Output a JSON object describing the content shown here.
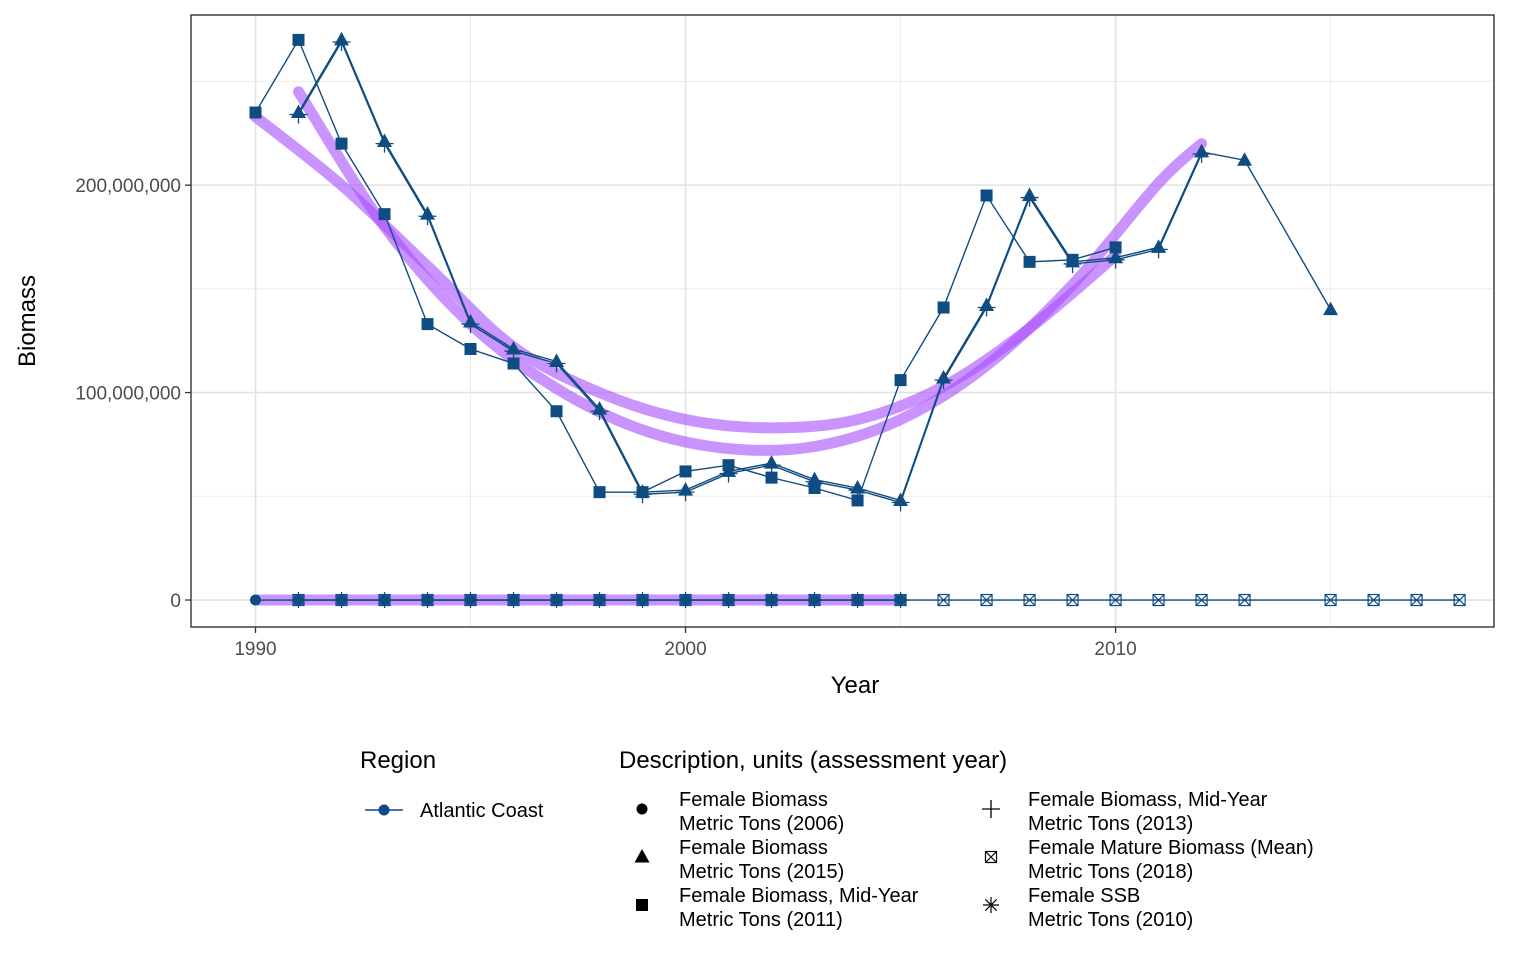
{
  "chart_data": {
    "type": "line",
    "xlabel": "Year",
    "ylabel": "Biomass",
    "xlim": [
      1988.5,
      2018.8
    ],
    "ylim": [
      -13000000,
      282000000
    ],
    "x_ticks": [
      1990,
      2000,
      2010
    ],
    "x_tick_labels": [
      "1990",
      "2000",
      "2010"
    ],
    "y_ticks": [
      0,
      100000000,
      200000000
    ],
    "y_tick_labels": [
      "0",
      "100,000,000",
      "200,000,000"
    ],
    "grid": true,
    "legend_position": "bottom",
    "line_color": "#0f4c81",
    "smooth_color": "#a64dff",
    "series": [
      {
        "shape": "square",
        "x": [
          1990,
          1991,
          1992,
          1993,
          1994,
          1995,
          1996,
          1997,
          1998,
          1999,
          2000,
          2001,
          2002,
          2003,
          2004,
          2005,
          2006,
          2007,
          2008,
          2009,
          2010
        ],
        "y": [
          235000000,
          270000000,
          220000000,
          186000000,
          133000000,
          121000000,
          114000000,
          91000000,
          52000000,
          52000000,
          62000000,
          65000000,
          59000000,
          54000000,
          48000000,
          106000000,
          141000000,
          195000000,
          163000000,
          164000000,
          170000000
        ]
      },
      {
        "shape": "triangle",
        "x": [
          1991,
          1992,
          1993,
          1994,
          1995,
          1996,
          1997,
          1998,
          1999,
          2000,
          2001,
          2002,
          2003,
          2004,
          2005,
          2006,
          2007,
          2008,
          2009,
          2010,
          2011,
          2012,
          2013,
          2015
        ],
        "y": [
          235000000,
          270000000,
          221000000,
          186000000,
          134000000,
          121000000,
          115000000,
          92000000,
          52000000,
          53000000,
          62000000,
          66000000,
          58000000,
          54000000,
          48000000,
          107000000,
          142000000,
          195000000,
          163000000,
          165000000,
          170000000,
          216000000,
          212000000,
          140000000
        ]
      },
      {
        "shape": "plus",
        "x": [
          1991,
          1992,
          1993,
          1994,
          1995,
          1996,
          1997,
          1998,
          1999,
          2000,
          2001,
          2002,
          2003,
          2004,
          2005,
          2006,
          2007,
          2008,
          2009,
          2010,
          2011,
          2012
        ],
        "y": [
          234000000,
          269000000,
          220000000,
          185000000,
          133000000,
          120000000,
          114000000,
          91000000,
          51000000,
          52000000,
          61000000,
          65000000,
          57000000,
          53000000,
          47000000,
          106000000,
          141000000,
          194000000,
          162000000,
          164000000,
          169000000,
          215000000
        ]
      },
      {
        "shape": "circle",
        "x": [
          1990,
          1991,
          1992,
          1993,
          1994,
          1995,
          1996,
          1997,
          1998,
          1999,
          2000,
          2001,
          2002,
          2003,
          2004,
          2005
        ],
        "y": [
          0,
          0,
          0,
          0,
          0,
          0,
          0,
          0,
          0,
          0,
          0,
          0,
          0,
          0,
          0,
          0
        ]
      },
      {
        "shape": "asterisk",
        "x": [
          1991,
          1992,
          1993,
          1994,
          1995,
          1996,
          1997,
          1998,
          1999,
          2000,
          2001,
          2002,
          2003,
          2004,
          2005
        ],
        "y": [
          0,
          0,
          0,
          0,
          0,
          0,
          0,
          0,
          0,
          0,
          0,
          0,
          0,
          0,
          0
        ]
      },
      {
        "shape": "boxcross",
        "x": [
          1991,
          1992,
          1993,
          1994,
          1995,
          1996,
          1997,
          1998,
          1999,
          2000,
          2001,
          2002,
          2003,
          2004,
          2005,
          2006,
          2007,
          2008,
          2009,
          2010,
          2011,
          2012,
          2013,
          2015,
          2016,
          2017,
          2018
        ],
        "y": [
          0,
          0,
          0,
          0,
          0,
          0,
          0,
          0,
          0,
          0,
          0,
          0,
          0,
          0,
          0,
          0,
          0,
          0,
          0,
          0,
          0,
          0,
          0,
          0,
          0,
          0,
          0
        ]
      }
    ],
    "smooth_fits": [
      {
        "x": [
          1990,
          1992,
          1994,
          1996,
          1998,
          2000,
          2002,
          2004,
          2006,
          2008,
          2010
        ],
        "y": [
          233000000,
          200000000,
          161000000,
          122000000,
          100000000,
          87000000,
          83000000,
          87000000,
          103000000,
          131000000,
          166000000
        ]
      },
      {
        "x": [
          1991,
          1993,
          1995,
          1997,
          1999,
          2001,
          2003,
          2005,
          2007,
          2009,
          2011,
          2012
        ],
        "y": [
          245000000,
          180000000,
          133000000,
          102000000,
          82000000,
          73000000,
          74000000,
          87000000,
          113000000,
          152000000,
          201000000,
          220000000
        ]
      },
      {
        "x": [
          1990,
          2005
        ],
        "y": [
          0,
          0
        ]
      }
    ]
  },
  "legend": {
    "region_title": "Region",
    "region_items": [
      {
        "label": "Atlantic Coast",
        "shape": "circle"
      }
    ],
    "desc_title": "Description, units (assessment year)",
    "desc_items": [
      {
        "line1": "Female Biomass",
        "line2": "Metric Tons (2006)",
        "shape": "circle"
      },
      {
        "line1": "Female Biomass",
        "line2": "Metric Tons (2015)",
        "shape": "triangle"
      },
      {
        "line1": "Female Biomass, Mid-Year",
        "line2": "Metric Tons (2011)",
        "shape": "square"
      },
      {
        "line1": "Female Biomass, Mid-Year",
        "line2": "Metric Tons (2013)",
        "shape": "plus"
      },
      {
        "line1": "Female Mature Biomass (Mean)",
        "line2": "Metric Tons (2018)",
        "shape": "boxcross"
      },
      {
        "line1": "Female SSB",
        "line2": "Metric Tons (2010)",
        "shape": "asterisk"
      }
    ]
  }
}
